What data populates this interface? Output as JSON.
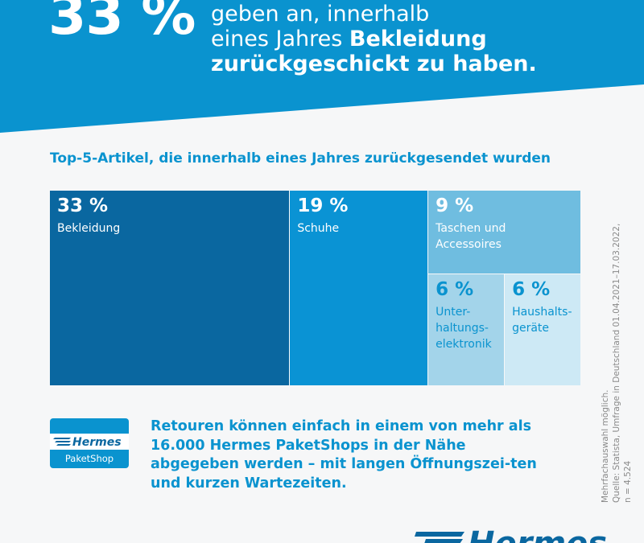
{
  "hero": {
    "percent": "33 %",
    "line1": "geben an, innerhalb",
    "line2_prefix": "eines Jahres ",
    "line2_bold": "Bekleidung",
    "line3_bold": "zurückgeschickt zu haben."
  },
  "subtitle": "Top-5-Artikel, die innerhalb eines Jahres zurückgesendet wurden",
  "chart_data": {
    "type": "treemap",
    "title": "Top-5-Artikel, die innerhalb eines Jahres zurückgesendet wurden",
    "unit": "%",
    "items": [
      {
        "label": "33 %",
        "name": "Bekleidung",
        "value": 33,
        "color": "#0a67a0",
        "text_color": "#ffffff"
      },
      {
        "label": "19 %",
        "name": "Schuhe",
        "value": 19,
        "color": "#0a93d4",
        "text_color": "#ffffff"
      },
      {
        "label": "9 %",
        "name": "Taschen und\nAccessoires",
        "value": 9,
        "color": "#6fbde0",
        "text_color": "#ffffff"
      },
      {
        "label": "6 %",
        "name": "Unter-\nhaltungs-\nelektronik",
        "value": 6,
        "color": "#a3d4ea",
        "text_color": "#0a93cf"
      },
      {
        "label": "6 %",
        "name": "Haushalts-\ngeräte",
        "value": 6,
        "color": "#cde9f5",
        "text_color": "#0a93cf"
      }
    ]
  },
  "colors": {
    "brand_blue": "#0a93cf",
    "dark_blue": "#0a67a0"
  },
  "source": {
    "line1": "Mehrfachauswahl möglich.",
    "line2": "Quelle: Statista, Umfrage in Deutschland 01.04.2021–17.03.2022,",
    "line3": "n = 4.524"
  },
  "paketshop": {
    "brand": "Hermes",
    "label": "PaketShop"
  },
  "cta": "Retouren können einfach in einem von mehr als 16.000 Hermes PaketShops in der Nähe abgegeben werden – mit langen Öffnungszei-ten und kurzen Wartezeiten.",
  "footer_logo": {
    "text": "Hermes"
  }
}
